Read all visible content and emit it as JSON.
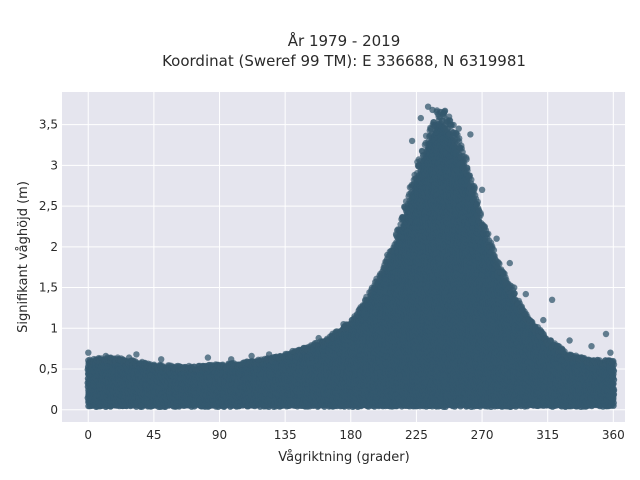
{
  "chart_data": {
    "type": "scatter",
    "title_line1": "År 1979 - 2019",
    "title_line2": "Koordinat (Sweref 99 TM): E 336688, N 6319981",
    "xlabel": "Vågriktning (grader)",
    "ylabel": "Signifikant våghöjd (m)",
    "xlim": [
      -18,
      368
    ],
    "ylim": [
      -0.15,
      3.9
    ],
    "grid": true,
    "x_ticks": [
      {
        "value": 0,
        "label": "0"
      },
      {
        "value": 45,
        "label": "45"
      },
      {
        "value": 90,
        "label": "90"
      },
      {
        "value": 135,
        "label": "135"
      },
      {
        "value": 180,
        "label": "180"
      },
      {
        "value": 225,
        "label": "225"
      },
      {
        "value": 270,
        "label": "270"
      },
      {
        "value": 315,
        "label": "315"
      },
      {
        "value": 360,
        "label": "360"
      }
    ],
    "y_ticks": [
      {
        "value": 0,
        "label": "0"
      },
      {
        "value": 0.5,
        "label": "0,5"
      },
      {
        "value": 1,
        "label": "1"
      },
      {
        "value": 1.5,
        "label": "1,5"
      },
      {
        "value": 2,
        "label": "2"
      },
      {
        "value": 2.5,
        "label": "2,5"
      },
      {
        "value": 3,
        "label": "3"
      },
      {
        "value": 3.5,
        "label": "3,5"
      }
    ],
    "marker_color": "#34586e",
    "background_color": "#e5e5ee",
    "envelope": {
      "x": [
        0,
        10,
        20,
        30,
        45,
        60,
        75,
        90,
        105,
        120,
        135,
        150,
        165,
        180,
        190,
        200,
        210,
        220,
        225,
        230,
        235,
        240,
        245,
        250,
        255,
        260,
        265,
        270,
        280,
        290,
        300,
        315,
        330,
        345,
        360
      ],
      "y_max": [
        0.55,
        0.58,
        0.58,
        0.55,
        0.5,
        0.48,
        0.48,
        0.5,
        0.52,
        0.56,
        0.62,
        0.7,
        0.82,
        1.0,
        1.25,
        1.55,
        1.95,
        2.5,
        2.8,
        3.05,
        3.3,
        3.5,
        3.45,
        3.3,
        3.1,
        2.85,
        2.55,
        2.2,
        1.75,
        1.4,
        1.1,
        0.8,
        0.62,
        0.55,
        0.55
      ],
      "y_min": [
        0.05,
        0.05,
        0.05,
        0.05,
        0.05,
        0.05,
        0.05,
        0.05,
        0.05,
        0.05,
        0.05,
        0.05,
        0.05,
        0.05,
        0.05,
        0.05,
        0.05,
        0.05,
        0.05,
        0.05,
        0.05,
        0.05,
        0.05,
        0.05,
        0.05,
        0.05,
        0.05,
        0.05,
        0.05,
        0.05,
        0.05,
        0.05,
        0.05,
        0.05,
        0.05
      ]
    },
    "outliers": [
      {
        "x": 0,
        "y": 0.7
      },
      {
        "x": 12,
        "y": 0.66
      },
      {
        "x": 28,
        "y": 0.64
      },
      {
        "x": 33,
        "y": 0.68
      },
      {
        "x": 50,
        "y": 0.62
      },
      {
        "x": 82,
        "y": 0.64
      },
      {
        "x": 98,
        "y": 0.62
      },
      {
        "x": 112,
        "y": 0.66
      },
      {
        "x": 124,
        "y": 0.68
      },
      {
        "x": 140,
        "y": 0.72
      },
      {
        "x": 158,
        "y": 0.88
      },
      {
        "x": 175,
        "y": 1.05
      },
      {
        "x": 190,
        "y": 1.35
      },
      {
        "x": 205,
        "y": 1.9
      },
      {
        "x": 222,
        "y": 3.3
      },
      {
        "x": 228,
        "y": 3.58
      },
      {
        "x": 233,
        "y": 3.72
      },
      {
        "x": 236,
        "y": 3.68
      },
      {
        "x": 244,
        "y": 3.65
      },
      {
        "x": 248,
        "y": 3.55
      },
      {
        "x": 254,
        "y": 3.45
      },
      {
        "x": 262,
        "y": 3.38
      },
      {
        "x": 270,
        "y": 2.7
      },
      {
        "x": 280,
        "y": 2.1
      },
      {
        "x": 289,
        "y": 1.8
      },
      {
        "x": 292,
        "y": 1.5
      },
      {
        "x": 300,
        "y": 1.42
      },
      {
        "x": 312,
        "y": 1.1
      },
      {
        "x": 318,
        "y": 1.35
      },
      {
        "x": 330,
        "y": 0.85
      },
      {
        "x": 345,
        "y": 0.78
      },
      {
        "x": 355,
        "y": 0.93
      },
      {
        "x": 358,
        "y": 0.7
      }
    ]
  }
}
